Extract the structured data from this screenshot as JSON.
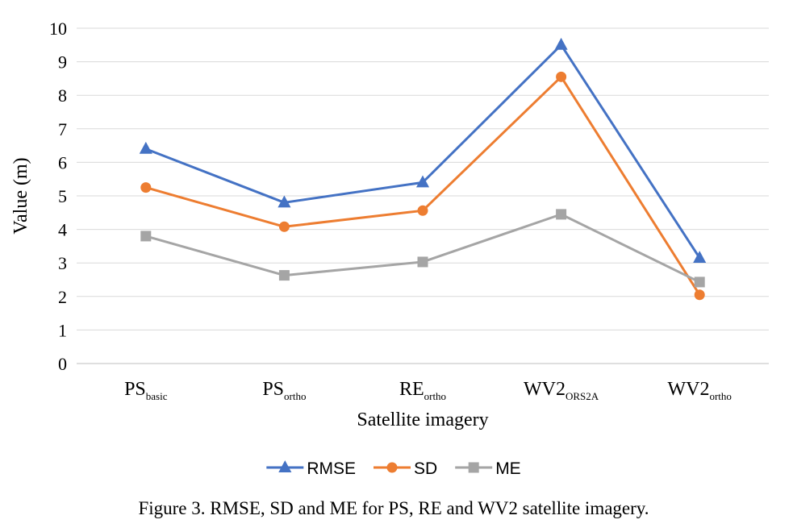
{
  "chart_data": {
    "type": "line",
    "caption": "Figure 3. RMSE, SD and ME for PS, RE and WV2 satellite imagery.",
    "xlabel": "Satellite imagery",
    "ylabel": "Value (m)",
    "ylim": [
      0,
      10
    ],
    "yticks": [
      0,
      1,
      2,
      3,
      4,
      5,
      6,
      7,
      8,
      9,
      10
    ],
    "grid": true,
    "legend_position": "bottom",
    "categories": [
      {
        "main": "PS",
        "sub": "basic"
      },
      {
        "main": "PS",
        "sub": "ortho"
      },
      {
        "main": "RE",
        "sub": "ortho"
      },
      {
        "main": "WV2",
        "sub": "ORS2A"
      },
      {
        "main": "WV2",
        "sub": "ortho"
      }
    ],
    "series": [
      {
        "name": "RMSE",
        "color": "#4472C4",
        "marker": "triangle",
        "values": [
          6.4,
          4.8,
          5.4,
          9.5,
          3.15
        ]
      },
      {
        "name": "SD",
        "color": "#ED7D31",
        "marker": "circle",
        "values": [
          5.25,
          4.08,
          4.56,
          8.55,
          2.05
        ]
      },
      {
        "name": "ME",
        "color": "#A5A5A5",
        "marker": "square",
        "values": [
          3.8,
          2.63,
          3.03,
          4.45,
          2.43
        ]
      }
    ]
  }
}
